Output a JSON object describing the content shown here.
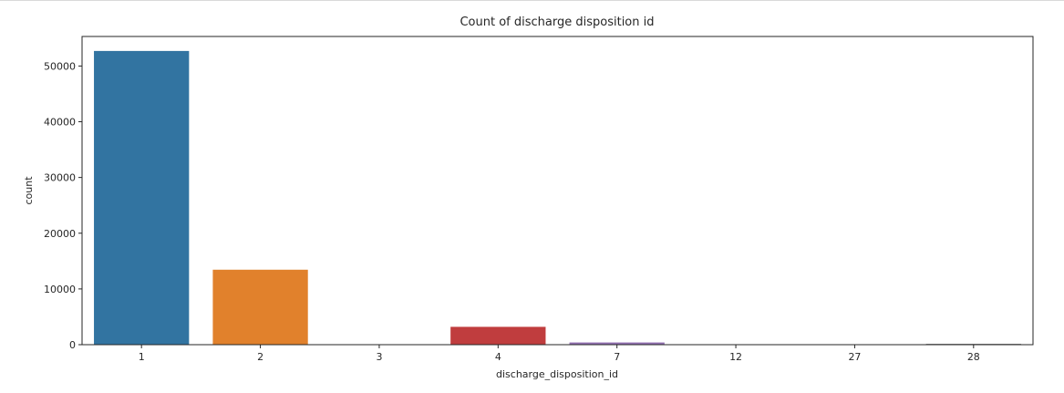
{
  "chart_data": {
    "type": "bar",
    "title": "Count of discharge disposition id",
    "xlabel": "discharge_disposition_id",
    "ylabel": "count",
    "categories": [
      "1",
      "2",
      "3",
      "4",
      "7",
      "12",
      "27",
      "28"
    ],
    "values": [
      52700,
      13450,
      5,
      3200,
      400,
      5,
      5,
      150
    ],
    "colors": [
      "#3274a1",
      "#e1812c",
      "#3a923a",
      "#c03d3e",
      "#9372b2",
      "#845b53",
      "#d684bd",
      "#7f7f7f"
    ],
    "ylim": [
      0,
      55300
    ],
    "yticks": [
      0,
      10000,
      20000,
      30000,
      40000,
      50000
    ],
    "grid": false,
    "legend": "none"
  }
}
